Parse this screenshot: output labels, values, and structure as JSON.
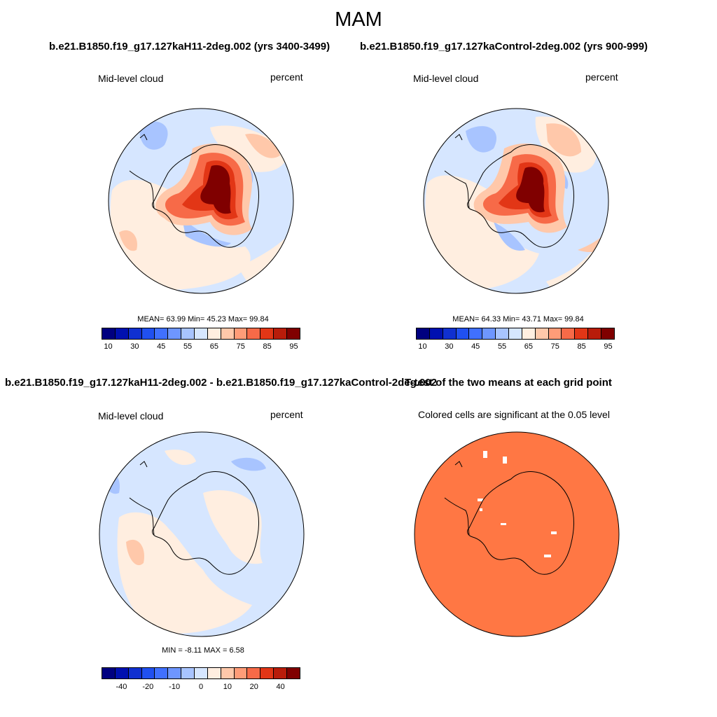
{
  "figure": {
    "title": "MAM",
    "case_test_title": "b.e21.B1850.f19_g17.127kaH11-2deg.002 (yrs 3400-3499)",
    "case_control_title": "b.e21.B1850.f19_g17.127kaControl-2deg.002 (yrs 900-999)",
    "diff_title": "b.e21.B1850.f19_g17.127kaH11-2deg.002 - b.e21.B1850.f19_g17.127kaControl-2deg.002",
    "ttest_title": "T-test of the two means at each grid point"
  },
  "panels": {
    "test": {
      "variable_label": "Mid-level cloud",
      "units_label": "percent",
      "stats": "MEAN=  63.99  Min=  45.23  Max=  99.84",
      "mean": 63.99,
      "min": 45.23,
      "max": 99.84
    },
    "control": {
      "variable_label": "Mid-level cloud",
      "units_label": "percent",
      "stats": "MEAN=  64.33  Min=  43.71  Max=  99.84",
      "mean": 64.33,
      "min": 43.71,
      "max": 99.84
    },
    "difference": {
      "variable_label": "Mid-level cloud",
      "units_label": "percent",
      "stats": "MIN =  -8.11 MAX =   6.58",
      "min": -8.11,
      "max": 6.58
    },
    "ttest": {
      "significance_label": "Colored cells are significant at the 0.05 level",
      "fill_color": "#ff7744"
    }
  },
  "colorbars": {
    "absolute": {
      "tick_labels": [
        "10",
        "30",
        "45",
        "55",
        "65",
        "75",
        "85",
        "95"
      ],
      "colors": [
        "#000080",
        "#0010b0",
        "#1030d0",
        "#2050f0",
        "#4070ff",
        "#6e96ff",
        "#a8c4ff",
        "#d6e6ff",
        "#ffeee0",
        "#ffc8aa",
        "#ff9c78",
        "#f76a48",
        "#e23616",
        "#b81c0a",
        "#800000"
      ]
    },
    "difference": {
      "tick_labels": [
        "-40",
        "-20",
        "-10",
        "0",
        "10",
        "20",
        "40"
      ],
      "colors": [
        "#000080",
        "#0010b0",
        "#1030d0",
        "#2050f0",
        "#4070ff",
        "#6e96ff",
        "#a8c4ff",
        "#d6e6ff",
        "#ffeee0",
        "#ffc8aa",
        "#ff9c78",
        "#f76a48",
        "#e23616",
        "#b81c0a",
        "#800000"
      ]
    }
  }
}
